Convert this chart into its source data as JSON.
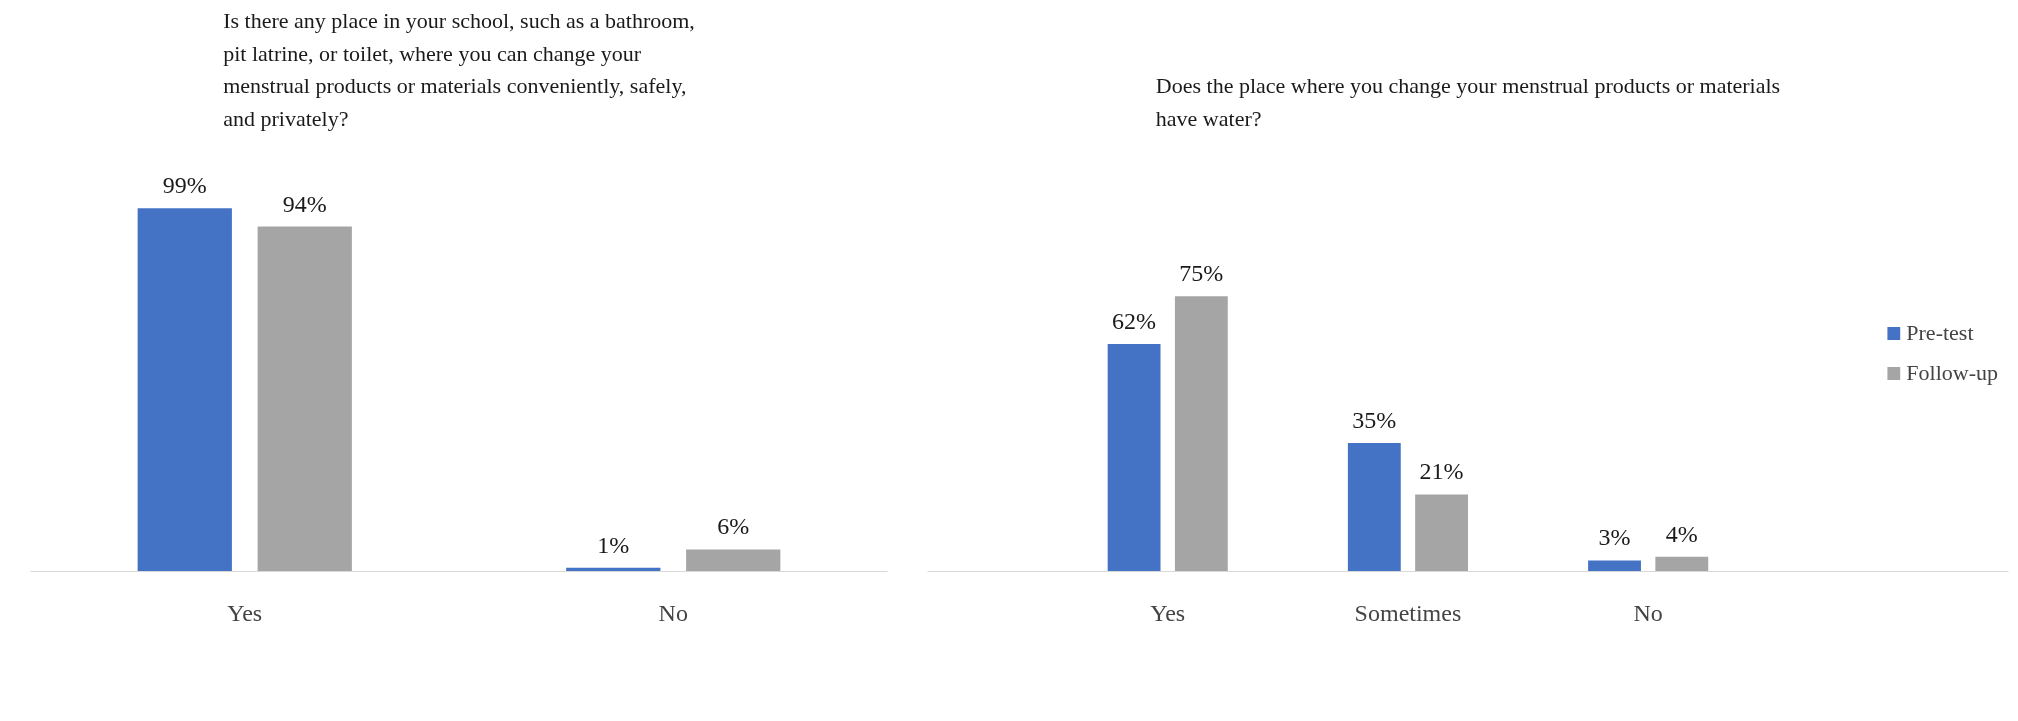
{
  "chart_data": [
    {
      "type": "bar",
      "title": "Is there any place in your school, such as a bathroom, pit latrine, or toilet, where you can change your menstrual products or materials conveniently, safely, and privately?",
      "categories": [
        "Yes",
        "No"
      ],
      "series": [
        {
          "color": "#4472c4",
          "values": [
            99,
            1
          ],
          "value_labels": [
            "99%",
            "1%"
          ]
        },
        {
          "color": "#a5a5a5",
          "values": [
            94,
            6
          ],
          "value_labels": [
            "94%",
            "6%"
          ]
        }
      ],
      "legend": false,
      "grid": false,
      "tick_labels": "x"
    },
    {
      "type": "bar",
      "title": "Does the place where you change your menstrual products or materials have water?",
      "categories": [
        "Yes",
        "Sometimes",
        "No"
      ],
      "series": [
        {
          "name": "Pre-test",
          "color": "#4472c4",
          "values": [
            62,
            35,
            3
          ],
          "value_labels": [
            "62%",
            "35%",
            "3%"
          ]
        },
        {
          "name": "Follow-up",
          "color": "#a5a5a5",
          "values": [
            75,
            21,
            4
          ],
          "value_labels": [
            "75%",
            "21%",
            "4%"
          ]
        }
      ],
      "legend": "right",
      "grid": false,
      "tick_labels": "x"
    }
  ]
}
